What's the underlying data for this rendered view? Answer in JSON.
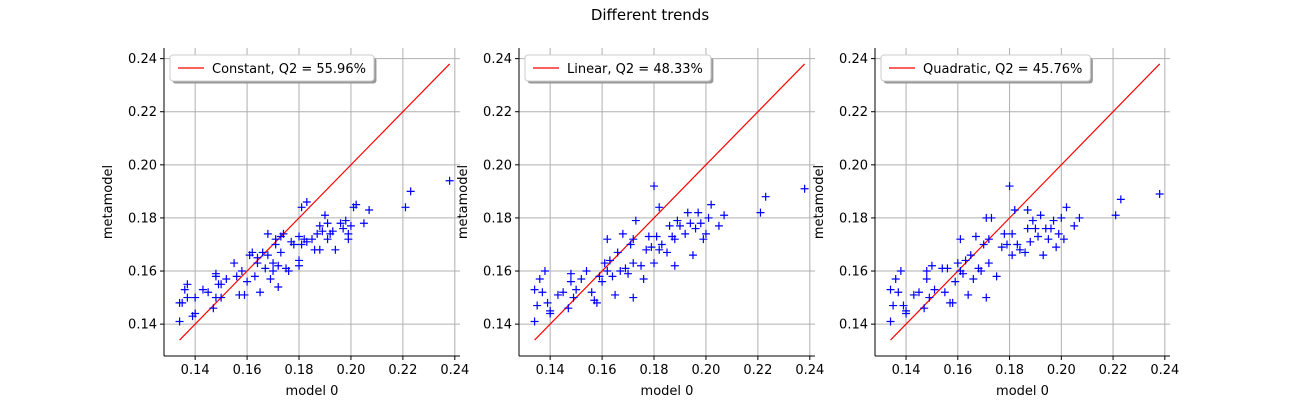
{
  "figure_title": "Different trends",
  "colors": {
    "points": "#0000ff",
    "diagonal": "#ff0000",
    "grid": "#b0b0b0",
    "axes": "#000000"
  },
  "chart_data": [
    {
      "type": "scatter",
      "legend": "Constant, Q2 = 55.96%",
      "legend_placement": "top-left",
      "xlabel": "model 0",
      "ylabel": "metamodel",
      "xlim": [
        0.128,
        0.242
      ],
      "ylim": [
        0.128,
        0.244
      ],
      "xticks": [
        "0.14",
        "0.16",
        "0.18",
        "0.20",
        "0.22",
        "0.24"
      ],
      "yticks": [
        "0.14",
        "0.16",
        "0.18",
        "0.20",
        "0.22",
        "0.24"
      ],
      "grid": true,
      "diagonal": [
        [
          0.134,
          0.134
        ],
        [
          0.238,
          0.238
        ]
      ],
      "marker": "+",
      "points": [
        [
          0.134,
          0.148
        ],
        [
          0.134,
          0.141
        ],
        [
          0.135,
          0.148
        ],
        [
          0.136,
          0.153
        ],
        [
          0.137,
          0.155
        ],
        [
          0.137,
          0.15
        ],
        [
          0.139,
          0.143
        ],
        [
          0.14,
          0.144
        ],
        [
          0.14,
          0.15
        ],
        [
          0.143,
          0.153
        ],
        [
          0.145,
          0.152
        ],
        [
          0.147,
          0.146
        ],
        [
          0.148,
          0.159
        ],
        [
          0.148,
          0.158
        ],
        [
          0.148,
          0.15
        ],
        [
          0.149,
          0.155
        ],
        [
          0.15,
          0.15
        ],
        [
          0.15,
          0.155
        ],
        [
          0.152,
          0.157
        ],
        [
          0.155,
          0.163
        ],
        [
          0.156,
          0.158
        ],
        [
          0.157,
          0.151
        ],
        [
          0.158,
          0.16
        ],
        [
          0.159,
          0.151
        ],
        [
          0.16,
          0.156
        ],
        [
          0.161,
          0.166
        ],
        [
          0.162,
          0.167
        ],
        [
          0.163,
          0.158
        ],
        [
          0.164,
          0.163
        ],
        [
          0.164,
          0.165
        ],
        [
          0.165,
          0.152
        ],
        [
          0.166,
          0.167
        ],
        [
          0.167,
          0.161
        ],
        [
          0.168,
          0.174
        ],
        [
          0.168,
          0.166
        ],
        [
          0.169,
          0.157
        ],
        [
          0.17,
          0.163
        ],
        [
          0.17,
          0.16
        ],
        [
          0.171,
          0.172
        ],
        [
          0.171,
          0.17
        ],
        [
          0.172,
          0.162
        ],
        [
          0.172,
          0.154
        ],
        [
          0.173,
          0.173
        ],
        [
          0.173,
          0.167
        ],
        [
          0.174,
          0.174
        ],
        [
          0.175,
          0.161
        ],
        [
          0.176,
          0.16
        ],
        [
          0.177,
          0.171
        ],
        [
          0.178,
          0.17
        ],
        [
          0.18,
          0.173
        ],
        [
          0.18,
          0.164
        ],
        [
          0.18,
          0.162
        ],
        [
          0.181,
          0.184
        ],
        [
          0.181,
          0.17
        ],
        [
          0.182,
          0.172
        ],
        [
          0.183,
          0.186
        ],
        [
          0.183,
          0.171
        ],
        [
          0.185,
          0.172
        ],
        [
          0.186,
          0.168
        ],
        [
          0.187,
          0.174
        ],
        [
          0.188,
          0.168
        ],
        [
          0.188,
          0.177
        ],
        [
          0.189,
          0.175
        ],
        [
          0.19,
          0.181
        ],
        [
          0.191,
          0.178
        ],
        [
          0.191,
          0.172
        ],
        [
          0.192,
          0.174
        ],
        [
          0.193,
          0.175
        ],
        [
          0.194,
          0.168
        ],
        [
          0.196,
          0.178
        ],
        [
          0.197,
          0.176
        ],
        [
          0.198,
          0.179
        ],
        [
          0.199,
          0.174
        ],
        [
          0.199,
          0.172
        ],
        [
          0.2,
          0.177
        ],
        [
          0.201,
          0.184
        ],
        [
          0.202,
          0.185
        ],
        [
          0.205,
          0.178
        ],
        [
          0.207,
          0.183
        ],
        [
          0.221,
          0.184
        ],
        [
          0.223,
          0.19
        ],
        [
          0.238,
          0.194
        ]
      ]
    },
    {
      "type": "scatter",
      "legend": "Linear, Q2 = 48.33%",
      "legend_placement": "top-left",
      "xlabel": "model 0",
      "ylabel": "metamodel",
      "xlim": [
        0.128,
        0.242
      ],
      "ylim": [
        0.128,
        0.244
      ],
      "xticks": [
        "0.14",
        "0.16",
        "0.18",
        "0.20",
        "0.22",
        "0.24"
      ],
      "yticks": [
        "0.14",
        "0.16",
        "0.18",
        "0.20",
        "0.22",
        "0.24"
      ],
      "grid": true,
      "diagonal": [
        [
          0.134,
          0.134
        ],
        [
          0.238,
          0.238
        ]
      ],
      "marker": "+",
      "points": [
        [
          0.134,
          0.153
        ],
        [
          0.134,
          0.141
        ],
        [
          0.135,
          0.147
        ],
        [
          0.136,
          0.157
        ],
        [
          0.137,
          0.152
        ],
        [
          0.138,
          0.16
        ],
        [
          0.139,
          0.148
        ],
        [
          0.14,
          0.145
        ],
        [
          0.14,
          0.144
        ],
        [
          0.143,
          0.151
        ],
        [
          0.145,
          0.152
        ],
        [
          0.147,
          0.146
        ],
        [
          0.148,
          0.159
        ],
        [
          0.148,
          0.156
        ],
        [
          0.149,
          0.15
        ],
        [
          0.15,
          0.153
        ],
        [
          0.152,
          0.157
        ],
        [
          0.154,
          0.16
        ],
        [
          0.156,
          0.152
        ],
        [
          0.157,
          0.149
        ],
        [
          0.158,
          0.148
        ],
        [
          0.159,
          0.158
        ],
        [
          0.16,
          0.156
        ],
        [
          0.161,
          0.163
        ],
        [
          0.162,
          0.172
        ],
        [
          0.162,
          0.16
        ],
        [
          0.163,
          0.164
        ],
        [
          0.164,
          0.158
        ],
        [
          0.165,
          0.151
        ],
        [
          0.166,
          0.167
        ],
        [
          0.167,
          0.16
        ],
        [
          0.168,
          0.174
        ],
        [
          0.169,
          0.161
        ],
        [
          0.17,
          0.159
        ],
        [
          0.171,
          0.17
        ],
        [
          0.172,
          0.172
        ],
        [
          0.172,
          0.163
        ],
        [
          0.172,
          0.15
        ],
        [
          0.173,
          0.179
        ],
        [
          0.175,
          0.162
        ],
        [
          0.176,
          0.157
        ],
        [
          0.177,
          0.168
        ],
        [
          0.178,
          0.173
        ],
        [
          0.179,
          0.169
        ],
        [
          0.18,
          0.192
        ],
        [
          0.18,
          0.163
        ],
        [
          0.181,
          0.173
        ],
        [
          0.182,
          0.184
        ],
        [
          0.182,
          0.168
        ],
        [
          0.183,
          0.17
        ],
        [
          0.185,
          0.167
        ],
        [
          0.186,
          0.177
        ],
        [
          0.187,
          0.173
        ],
        [
          0.188,
          0.172
        ],
        [
          0.188,
          0.162
        ],
        [
          0.189,
          0.179
        ],
        [
          0.19,
          0.177
        ],
        [
          0.192,
          0.174
        ],
        [
          0.193,
          0.182
        ],
        [
          0.194,
          0.178
        ],
        [
          0.195,
          0.166
        ],
        [
          0.196,
          0.176
        ],
        [
          0.197,
          0.182
        ],
        [
          0.198,
          0.178
        ],
        [
          0.199,
          0.172
        ],
        [
          0.2,
          0.174
        ],
        [
          0.201,
          0.18
        ],
        [
          0.202,
          0.185
        ],
        [
          0.205,
          0.177
        ],
        [
          0.207,
          0.181
        ],
        [
          0.221,
          0.182
        ],
        [
          0.223,
          0.188
        ],
        [
          0.238,
          0.191
        ]
      ]
    },
    {
      "type": "scatter",
      "legend": "Quadratic, Q2 = 45.76%",
      "legend_placement": "top-left",
      "xlabel": "model 0",
      "ylabel": "metamodel",
      "xlim": [
        0.128,
        0.242
      ],
      "ylim": [
        0.128,
        0.244
      ],
      "xticks": [
        "0.14",
        "0.16",
        "0.18",
        "0.20",
        "0.22",
        "0.24"
      ],
      "yticks": [
        "0.14",
        "0.16",
        "0.18",
        "0.20",
        "0.22",
        "0.24"
      ],
      "grid": true,
      "diagonal": [
        [
          0.134,
          0.134
        ],
        [
          0.238,
          0.238
        ]
      ],
      "marker": "+",
      "points": [
        [
          0.134,
          0.153
        ],
        [
          0.134,
          0.141
        ],
        [
          0.135,
          0.147
        ],
        [
          0.136,
          0.157
        ],
        [
          0.137,
          0.152
        ],
        [
          0.138,
          0.16
        ],
        [
          0.139,
          0.147
        ],
        [
          0.14,
          0.145
        ],
        [
          0.14,
          0.144
        ],
        [
          0.143,
          0.151
        ],
        [
          0.145,
          0.152
        ],
        [
          0.147,
          0.146
        ],
        [
          0.148,
          0.157
        ],
        [
          0.148,
          0.16
        ],
        [
          0.149,
          0.15
        ],
        [
          0.15,
          0.162
        ],
        [
          0.151,
          0.153
        ],
        [
          0.154,
          0.161
        ],
        [
          0.155,
          0.152
        ],
        [
          0.156,
          0.161
        ],
        [
          0.157,
          0.148
        ],
        [
          0.158,
          0.148
        ],
        [
          0.159,
          0.156
        ],
        [
          0.16,
          0.163
        ],
        [
          0.161,
          0.172
        ],
        [
          0.161,
          0.16
        ],
        [
          0.162,
          0.159
        ],
        [
          0.163,
          0.164
        ],
        [
          0.164,
          0.151
        ],
        [
          0.165,
          0.166
        ],
        [
          0.166,
          0.157
        ],
        [
          0.167,
          0.173
        ],
        [
          0.168,
          0.161
        ],
        [
          0.169,
          0.16
        ],
        [
          0.17,
          0.17
        ],
        [
          0.171,
          0.18
        ],
        [
          0.171,
          0.15
        ],
        [
          0.172,
          0.172
        ],
        [
          0.172,
          0.163
        ],
        [
          0.173,
          0.18
        ],
        [
          0.175,
          0.158
        ],
        [
          0.177,
          0.169
        ],
        [
          0.178,
          0.174
        ],
        [
          0.179,
          0.17
        ],
        [
          0.18,
          0.192
        ],
        [
          0.181,
          0.174
        ],
        [
          0.181,
          0.166
        ],
        [
          0.182,
          0.183
        ],
        [
          0.183,
          0.17
        ],
        [
          0.184,
          0.168
        ],
        [
          0.186,
          0.167
        ],
        [
          0.187,
          0.176
        ],
        [
          0.187,
          0.183
        ],
        [
          0.188,
          0.171
        ],
        [
          0.189,
          0.179
        ],
        [
          0.19,
          0.176
        ],
        [
          0.191,
          0.173
        ],
        [
          0.192,
          0.181
        ],
        [
          0.193,
          0.166
        ],
        [
          0.194,
          0.176
        ],
        [
          0.195,
          0.172
        ],
        [
          0.196,
          0.176
        ],
        [
          0.197,
          0.179
        ],
        [
          0.198,
          0.169
        ],
        [
          0.199,
          0.174
        ],
        [
          0.2,
          0.18
        ],
        [
          0.201,
          0.172
        ],
        [
          0.202,
          0.184
        ],
        [
          0.205,
          0.177
        ],
        [
          0.207,
          0.18
        ],
        [
          0.221,
          0.181
        ],
        [
          0.223,
          0.187
        ],
        [
          0.238,
          0.189
        ]
      ]
    }
  ]
}
